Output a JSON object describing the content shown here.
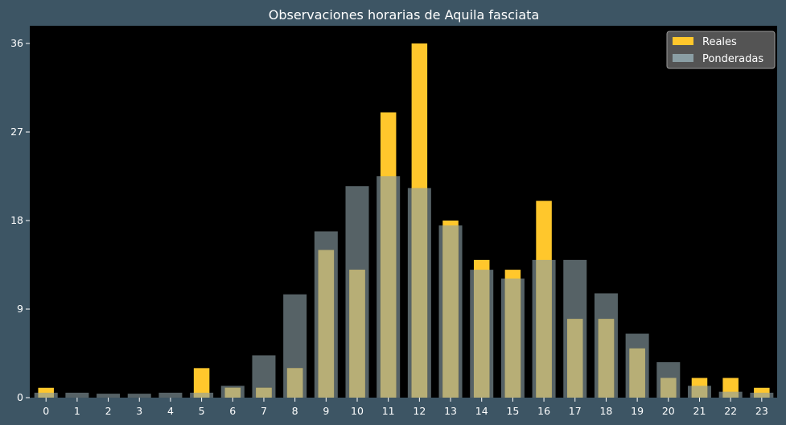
{
  "chart_data": {
    "type": "bar",
    "title": "Observaciones horarias de Aquila fasciata",
    "xlabel": "",
    "ylabel": "",
    "categories": [
      "0",
      "1",
      "2",
      "3",
      "4",
      "5",
      "6",
      "7",
      "8",
      "9",
      "10",
      "11",
      "12",
      "13",
      "14",
      "15",
      "16",
      "17",
      "18",
      "19",
      "20",
      "21",
      "22",
      "23"
    ],
    "yticks": [
      0,
      9,
      18,
      27,
      36
    ],
    "ylim": [
      0,
      37.8
    ],
    "grid": false,
    "legend_position": "top-right",
    "series": [
      {
        "name": "Reales",
        "color": "#ffc72c",
        "values": [
          1,
          0,
          0,
          0,
          0,
          3,
          1,
          1,
          3,
          15,
          13,
          29,
          36,
          18,
          14,
          13,
          20,
          8,
          8,
          5,
          2,
          2,
          2,
          1
        ]
      },
      {
        "name": "Ponderadas",
        "color": "#8a9ea4",
        "values": [
          0.5,
          0.5,
          0.4,
          0.4,
          0.5,
          0.5,
          1.2,
          4.3,
          10.5,
          16.9,
          21.5,
          22.5,
          21.3,
          17.5,
          13,
          12.1,
          14,
          14,
          10.6,
          6.5,
          3.6,
          1.2,
          0.6,
          0.5
        ]
      }
    ]
  }
}
